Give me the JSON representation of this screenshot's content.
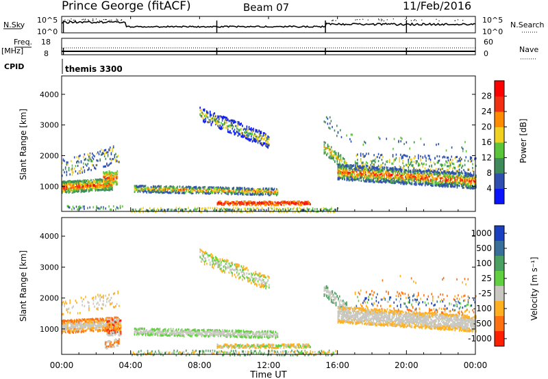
{
  "header": {
    "station": "Prince George (fitACF)",
    "beam": "Beam 07",
    "date": "11/Feb/2016"
  },
  "strips": {
    "nsky_label": "N.Sky",
    "nsky_ticks": [
      "10^5",
      "10^0"
    ],
    "nsky_right_ticks": [
      "10^5",
      "10^0"
    ],
    "nsearch_label": "N.Search",
    "freq_label": "Freq.",
    "freq_unit": "[MHz]",
    "freq_ticks": [
      "18",
      "8"
    ],
    "nave_label": "Nave",
    "nave_ticks": [
      "60",
      "0"
    ],
    "cpid_label": "CPID",
    "cpid_value": "themis 3300"
  },
  "chart_data": [
    {
      "type": "heatmap",
      "name": "power",
      "xlabel": "",
      "ylabel": "Slant Range [km]",
      "x_range_hours": [
        0,
        24
      ],
      "ylim": [
        180,
        4600
      ],
      "yticks": [
        "1000",
        "2000",
        "3000",
        "4000"
      ],
      "colorbar_label": "Power [dB]",
      "colorbar_ticks": [
        "4",
        "8",
        "12",
        "16",
        "20",
        "24",
        "28"
      ],
      "colors": [
        "#0a14ff",
        "#2f4fb0",
        "#3f8a5a",
        "#5ac43a",
        "#f0d020",
        "#ff8c00",
        "#f03010",
        "#ff0000"
      ]
    },
    {
      "type": "heatmap",
      "name": "velocity",
      "xlabel": "Time UT",
      "ylabel": "Slant Range [km]",
      "x_range_hours": [
        0,
        24
      ],
      "ylim": [
        180,
        4600
      ],
      "yticks": [
        "1000",
        "2000",
        "3000",
        "4000"
      ],
      "xticks": [
        "00:00",
        "04:00",
        "08:00",
        "12:00",
        "16:00",
        "20:00",
        "00:00"
      ],
      "colorbar_label": "Velocity [m s⁻¹]",
      "colorbar_ticks": [
        "1000",
        "500",
        "100",
        "25",
        "-25",
        "-100",
        "-500",
        "-1000"
      ],
      "colors": [
        "#1a3fc0",
        "#3a6f9a",
        "#4aa060",
        "#60d040",
        "#c8c8c0",
        "#ffb020",
        "#ff7010",
        "#ff2000"
      ]
    }
  ]
}
